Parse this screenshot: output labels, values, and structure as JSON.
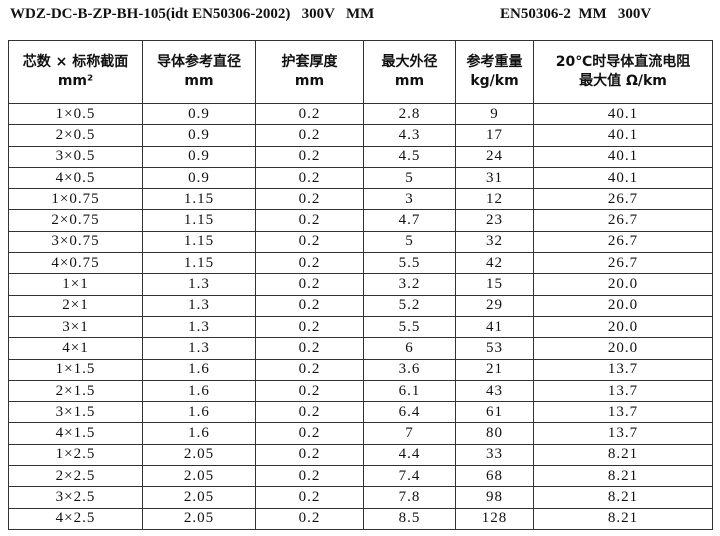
{
  "header": {
    "left": "WDZ-DC-B-ZP-BH-105(idt EN50306-2002)   300V   MM",
    "right": "EN50306-2  MM   300V"
  },
  "table": {
    "columns": [
      [
        "芯数 × 标称截面",
        "mm²"
      ],
      [
        "导体参考直径",
        "mm"
      ],
      [
        "护套厚度",
        "mm"
      ],
      [
        "最大外径",
        "mm"
      ],
      [
        "参考重量",
        "kg/km"
      ],
      [
        "20℃时导体直流电阻",
        "最大值 Ω/km"
      ]
    ],
    "rows": [
      [
        "1×0.5",
        "0.9",
        "0.2",
        "2.8",
        "9",
        "40.1"
      ],
      [
        "2×0.5",
        "0.9",
        "0.2",
        "4.3",
        "17",
        "40.1"
      ],
      [
        "3×0.5",
        "0.9",
        "0.2",
        "4.5",
        "24",
        "40.1"
      ],
      [
        "4×0.5",
        "0.9",
        "0.2",
        "5",
        "31",
        "40.1"
      ],
      [
        "1×0.75",
        "1.15",
        "0.2",
        "3",
        "12",
        "26.7"
      ],
      [
        "2×0.75",
        "1.15",
        "0.2",
        "4.7",
        "23",
        "26.7"
      ],
      [
        "3×0.75",
        "1.15",
        "0.2",
        "5",
        "32",
        "26.7"
      ],
      [
        "4×0.75",
        "1.15",
        "0.2",
        "5.5",
        "42",
        "26.7"
      ],
      [
        "1×1",
        "1.3",
        "0.2",
        "3.2",
        "15",
        "20.0"
      ],
      [
        "2×1",
        "1.3",
        "0.2",
        "5.2",
        "29",
        "20.0"
      ],
      [
        "3×1",
        "1.3",
        "0.2",
        "5.5",
        "41",
        "20.0"
      ],
      [
        "4×1",
        "1.3",
        "0.2",
        "6",
        "53",
        "20.0"
      ],
      [
        "1×1.5",
        "1.6",
        "0.2",
        "3.6",
        "21",
        "13.7"
      ],
      [
        "2×1.5",
        "1.6",
        "0.2",
        "6.1",
        "43",
        "13.7"
      ],
      [
        "3×1.5",
        "1.6",
        "0.2",
        "6.4",
        "61",
        "13.7"
      ],
      [
        "4×1.5",
        "1.6",
        "0.2",
        "7",
        "80",
        "13.7"
      ],
      [
        "1×2.5",
        "2.05",
        "0.2",
        "4.4",
        "33",
        "8.21"
      ],
      [
        "2×2.5",
        "2.05",
        "0.2",
        "7.4",
        "68",
        "8.21"
      ],
      [
        "3×2.5",
        "2.05",
        "0.2",
        "7.8",
        "98",
        "8.21"
      ],
      [
        "4×2.5",
        "2.05",
        "0.2",
        "8.5",
        "128",
        "8.21"
      ]
    ]
  }
}
